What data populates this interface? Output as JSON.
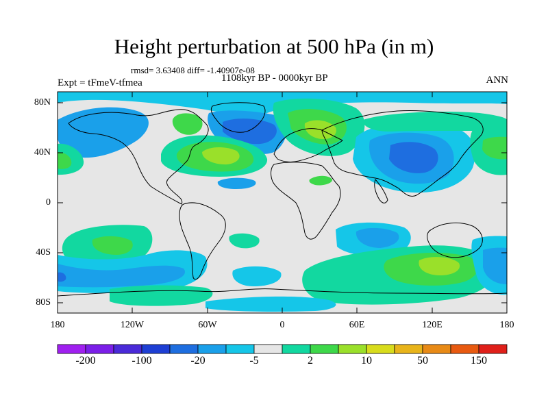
{
  "title": "Height perturbation at 500 hPa (in m)",
  "stats": "rmsd= 3.63408 diff= -1.40907e-08",
  "period": "1108kyr BP - 0000kyr BP",
  "experiment": "Expt = tFmeV-tfmea",
  "season": "ANN",
  "axes": {
    "y_ticks": [
      "80N",
      "40N",
      "0",
      "40S",
      "80S"
    ],
    "x_ticks": [
      "180",
      "120W",
      "60W",
      "0",
      "60E",
      "120E",
      "180"
    ]
  },
  "colorbar": {
    "labels": [
      "-200",
      "-100",
      "-20",
      "-5",
      "2",
      "10",
      "50",
      "150"
    ],
    "colors": [
      "#a020f0",
      "#7b1fe8",
      "#4a2ad8",
      "#1e3fd4",
      "#1e6ee0",
      "#1aa0ea",
      "#15c6e8",
      "#e6e6e6",
      "#12d8a0",
      "#3ed84a",
      "#9ae02a",
      "#d8dc1c",
      "#e8b41a",
      "#e88a16",
      "#e85a10",
      "#e0201a"
    ]
  },
  "palette": {
    "background": "#e6e6e6",
    "strong_negative": "#1e6ee0",
    "negative": "#1aa0ea",
    "weak_negative": "#15c6e8",
    "weak_positive": "#12d8a0",
    "positive": "#3ed84a",
    "strong_positive": "#9ae02a",
    "coast": "#000000"
  }
}
